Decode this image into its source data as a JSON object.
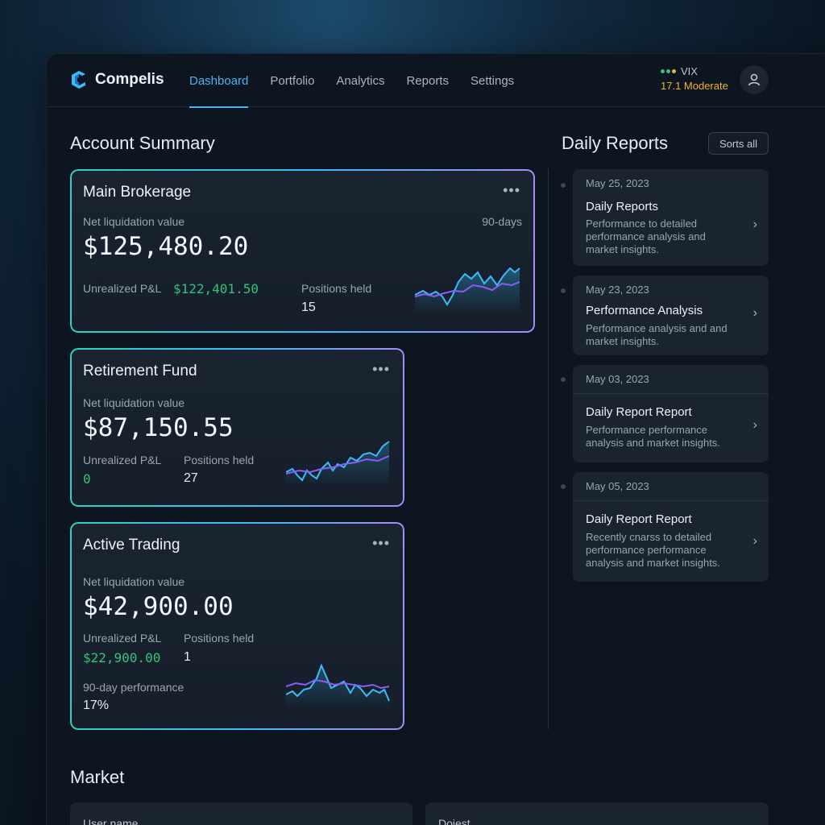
{
  "brand": {
    "name": "Compelis"
  },
  "nav": [
    {
      "label": "Dashboard",
      "active": true
    },
    {
      "label": "Portfolio",
      "active": false
    },
    {
      "label": "Analytics",
      "active": false
    },
    {
      "label": "Reports",
      "active": false
    },
    {
      "label": "Settings",
      "active": false
    }
  ],
  "vix": {
    "label": "VIX",
    "value": "17.1 Moderate"
  },
  "account_summary": {
    "title": "Account Summary",
    "accounts": [
      {
        "name": "Main Brokerage",
        "nlv_label": "Net liquidation value",
        "period": "90-days",
        "nlv": "$125,480.20",
        "pnl_label": "Unrealized P&L",
        "pnl": "$122,401.50",
        "positions_label": "Positions held",
        "positions": "15"
      },
      {
        "name": "Retirement Fund",
        "nlv_label": "Net liquidation value",
        "nlv": "$87,150.55",
        "pnl_label": "Unrealized P&L",
        "pnl": "0",
        "positions_label": "Positions held",
        "positions": "27"
      },
      {
        "name": "Active Trading",
        "nlv_label": "Net liquidation value",
        "nlv": "$42,900.00",
        "pnl_label": "Unrealized P&L",
        "pnl": "$22,900.00",
        "positions_label": "Positions held",
        "positions": "1",
        "perf_label": "90-day performance",
        "perf": "17%"
      }
    ]
  },
  "daily_reports": {
    "title": "Daily Reports",
    "sort_label": "Sorts all",
    "items": [
      {
        "date": "May 25, 2023",
        "title": "Daily Reports",
        "desc": "Performance to detailed performance analysis and market insights."
      },
      {
        "date": "May 23, 2023",
        "title": "Performance Analysis",
        "desc": "Performance analysis and and market insights."
      },
      {
        "date": "May 03, 2023",
        "title": "Daily Report Report",
        "desc": "Performance performance analysis and market insights."
      },
      {
        "date": "May 05, 2023",
        "title": "Daily Report Report",
        "desc": "Recently cnarss to detailed performance performance analysis and market insights."
      }
    ]
  },
  "market": {
    "title": "Market",
    "cards": [
      {
        "label": "User name"
      },
      {
        "label": "Dojest"
      }
    ]
  },
  "colors": {
    "accent": "#4db3f2",
    "positive": "#34c27a",
    "warning": "#f0b429",
    "spark_blue": "#38bdf8",
    "spark_purple": "#8b5cf6"
  },
  "icons": {
    "logo": "compelis-logo-icon",
    "avatar": "user-icon",
    "menu": "more-horizontal-icon",
    "chevron": "chevron-right-icon"
  }
}
